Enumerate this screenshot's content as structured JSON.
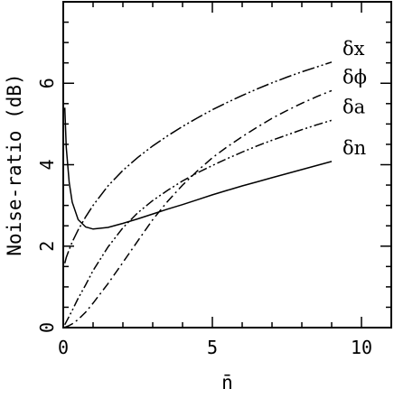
{
  "chart_data": {
    "type": "line",
    "title": "",
    "xlabel": "n̄",
    "ylabel": "Noise-ratio (dB)",
    "xlim": [
      0,
      11
    ],
    "ylim": [
      0,
      8
    ],
    "x_ticks": [
      0,
      5,
      10
    ],
    "y_ticks": [
      0,
      2,
      4,
      6
    ],
    "x_tick_labels": [
      "0",
      "5",
      "10"
    ],
    "y_tick_labels": [
      "0",
      "2",
      "4",
      "6"
    ],
    "grid": false,
    "legend": "labels at line ends (right)",
    "x": [
      0.05,
      0.1,
      0.2,
      0.3,
      0.5,
      0.75,
      1,
      1.5,
      2,
      2.5,
      3,
      3.5,
      4,
      4.5,
      5,
      5.5,
      6,
      6.5,
      7,
      7.5,
      8,
      8.5,
      9
    ],
    "series": [
      {
        "name": "δx",
        "style": "dash-dot-dot-long",
        "values": [
          1.58,
          1.72,
          1.92,
          2.1,
          2.4,
          2.72,
          3.0,
          3.48,
          3.86,
          4.18,
          4.46,
          4.71,
          4.94,
          5.15,
          5.35,
          5.53,
          5.7,
          5.86,
          6.01,
          6.15,
          6.28,
          6.4,
          6.52
        ]
      },
      {
        "name": "δϕ",
        "style": "dash-dot",
        "values": [
          0.01,
          0.02,
          0.05,
          0.09,
          0.2,
          0.38,
          0.6,
          1.08,
          1.6,
          2.13,
          2.65,
          3.1,
          3.5,
          3.85,
          4.17,
          4.44,
          4.69,
          4.92,
          5.14,
          5.33,
          5.51,
          5.67,
          5.82
        ]
      },
      {
        "name": "δa",
        "style": "dash-dot-dot",
        "values": [
          0.07,
          0.14,
          0.28,
          0.42,
          0.72,
          1.05,
          1.4,
          1.98,
          2.45,
          2.82,
          3.12,
          3.37,
          3.6,
          3.8,
          3.98,
          4.15,
          4.31,
          4.46,
          4.6,
          4.73,
          4.86,
          4.98,
          5.09
        ]
      },
      {
        "name": "δn",
        "style": "solid",
        "values": [
          5.4,
          4.43,
          3.56,
          3.08,
          2.65,
          2.47,
          2.42,
          2.46,
          2.56,
          2.67,
          2.79,
          2.91,
          3.02,
          3.14,
          3.26,
          3.37,
          3.48,
          3.58,
          3.68,
          3.78,
          3.88,
          3.98,
          4.08
        ]
      }
    ]
  }
}
